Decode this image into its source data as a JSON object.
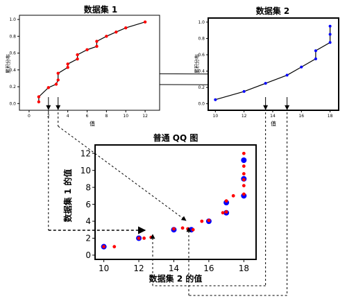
{
  "chart_data": [
    {
      "type": "scatter",
      "title": "数据集 1",
      "xlabel": "值",
      "ylabel": "累积分布",
      "xlim": [
        -1,
        13.5
      ],
      "ylim": [
        -0.08,
        1.05
      ],
      "x_ticks": [
        "0",
        "2",
        "4",
        "6",
        "8",
        "10",
        "12"
      ],
      "y_ticks": [
        "0.0",
        "0.2",
        "0.4",
        "0.6",
        "0.8",
        "1.0"
      ],
      "series": [
        {
          "color": "#ff0000",
          "points": [
            [
              1,
              0.02
            ],
            [
              1,
              0.08
            ],
            [
              2,
              0.19
            ],
            [
              2.8,
              0.23
            ],
            [
              3,
              0.28
            ],
            [
              3,
              0.36
            ],
            [
              4,
              0.43
            ],
            [
              4,
              0.47
            ],
            [
              5,
              0.53
            ],
            [
              5,
              0.58
            ],
            [
              6,
              0.64
            ],
            [
              7,
              0.68
            ],
            [
              7,
              0.74
            ],
            [
              8,
              0.8
            ],
            [
              9,
              0.85
            ],
            [
              10,
              0.9
            ],
            [
              12,
              0.97
            ]
          ]
        }
      ]
    },
    {
      "type": "scatter",
      "title": "数据集 2",
      "xlabel": "值",
      "ylabel": "累积分布",
      "xlim": [
        9.5,
        18.6
      ],
      "ylim": [
        -0.08,
        1.05
      ],
      "x_ticks": [
        "10",
        "12",
        "14",
        "16",
        "18"
      ],
      "y_ticks": [
        "0.0",
        "0.2",
        "0.4",
        "0.6",
        "0.8",
        "1.0"
      ],
      "series": [
        {
          "color": "#0000ff",
          "points": [
            [
              10,
              0.05
            ],
            [
              12,
              0.15
            ],
            [
              13.5,
              0.25
            ],
            [
              15,
              0.35
            ],
            [
              16,
              0.45
            ],
            [
              17,
              0.55
            ],
            [
              17,
              0.65
            ],
            [
              18,
              0.75
            ],
            [
              18,
              0.85
            ],
            [
              18,
              0.95
            ]
          ]
        }
      ]
    },
    {
      "type": "scatter",
      "title": "普通 QQ 图",
      "xlabel": "数据集 2 的值",
      "ylabel": "数据集 1 的值",
      "xlim": [
        9.5,
        18.7
      ],
      "ylim": [
        -0.5,
        13
      ],
      "x_ticks": [
        "10",
        "12",
        "14",
        "16",
        "18"
      ],
      "y_ticks": [
        "0",
        "2",
        "4",
        "6",
        "8",
        "10",
        "12"
      ],
      "series": [
        {
          "color": "#0000ff",
          "points": [
            [
              10,
              1
            ],
            [
              12,
              2
            ],
            [
              14,
              3
            ],
            [
              15,
              3
            ],
            [
              16,
              4
            ],
            [
              17,
              5
            ],
            [
              17,
              6.2
            ],
            [
              18,
              7
            ],
            [
              18,
              9
            ],
            [
              18,
              11.2
            ]
          ]
        },
        {
          "color": "#ff0000",
          "points": [
            [
              10,
              1
            ],
            [
              10.6,
              1
            ],
            [
              12,
              2
            ],
            [
              12.3,
              2
            ],
            [
              12.7,
              2.1
            ],
            [
              14,
              3.1
            ],
            [
              14.5,
              3.2
            ],
            [
              14.8,
              3.1
            ],
            [
              15.1,
              3
            ],
            [
              15.6,
              4
            ],
            [
              16,
              4.1
            ],
            [
              16.8,
              5
            ],
            [
              17,
              5.1
            ],
            [
              17,
              6.4
            ],
            [
              17.4,
              7
            ],
            [
              18,
              7.2
            ],
            [
              18,
              8.2
            ],
            [
              18,
              8.9
            ],
            [
              18,
              9.6
            ],
            [
              18,
              10.5
            ],
            [
              18,
              12
            ]
          ]
        }
      ]
    }
  ]
}
